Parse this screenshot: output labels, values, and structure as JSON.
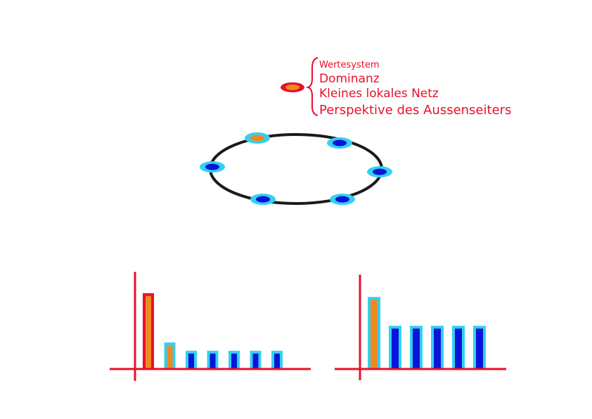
{
  "legend": {
    "items": [
      "Wertesystem",
      "Dominanz",
      "Kleines lokales Netz",
      "Perspektive des Aussenseiters"
    ]
  },
  "colors": {
    "red": "#e8102a",
    "orange": "#f08a20",
    "cyan": "#33d0f0",
    "blue": "#0a14d8",
    "ring": "#1a1a1a"
  },
  "network": {
    "nodes": [
      {
        "type": "outsider"
      },
      {
        "type": "member"
      },
      {
        "type": "member"
      },
      {
        "type": "member"
      },
      {
        "type": "member"
      },
      {
        "type": "member"
      }
    ]
  },
  "chart_data": [
    {
      "type": "bar",
      "categories": [
        "",
        "",
        "",
        "",
        "",
        "",
        ""
      ],
      "values": [
        100,
        35,
        24,
        24,
        24,
        24,
        24
      ],
      "kinds": [
        "outsider-red",
        "outsider-cyan",
        "member",
        "member",
        "member",
        "member",
        "member"
      ],
      "title": "",
      "xlabel": "",
      "ylabel": "",
      "ylim": [
        0,
        130
      ]
    },
    {
      "type": "bar",
      "categories": [
        "",
        "",
        "",
        "",
        "",
        ""
      ],
      "values": [
        100,
        60,
        60,
        60,
        60,
        60
      ],
      "kinds": [
        "outsider-cyan",
        "member",
        "member",
        "member",
        "member",
        "member"
      ],
      "title": "",
      "xlabel": "",
      "ylabel": "",
      "ylim": [
        0,
        130
      ]
    }
  ]
}
